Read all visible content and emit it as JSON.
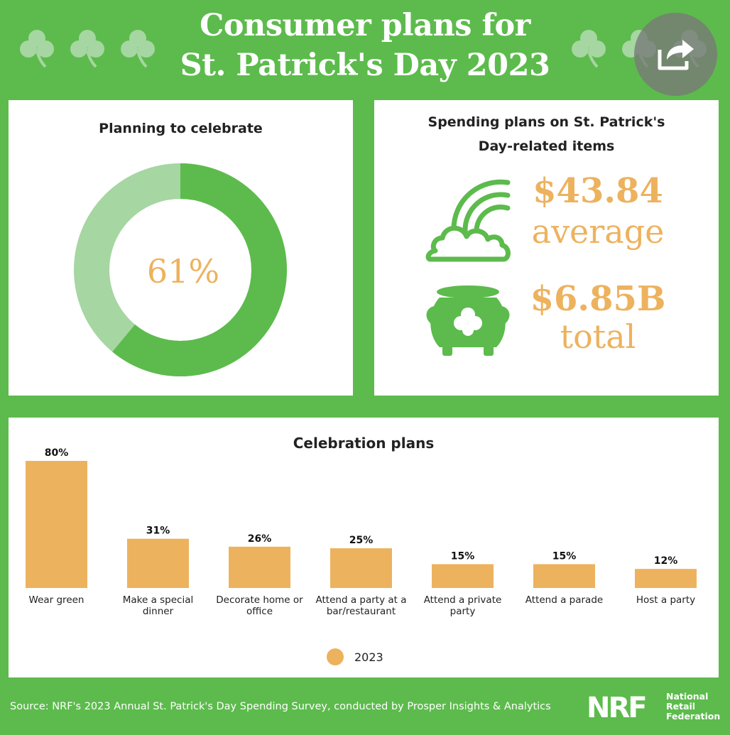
{
  "header": {
    "title_line1": "Consumer plans for",
    "title_line2": "St. Patrick's Day 2023"
  },
  "celebrate": {
    "title": "Planning to celebrate",
    "label": "61%",
    "value": 61,
    "colors": {
      "fill": "#5cbb4c",
      "rest": "#a6d6a2"
    }
  },
  "spending": {
    "title_line1": "Spending plans on St. Patrick's",
    "title_line2": "Day-related items",
    "average_value": "$43.84",
    "average_word": "average",
    "total_value": "$6.85B",
    "total_word": "total",
    "icons": [
      "rainbow-cloud-icon",
      "pot-of-gold-clover-icon"
    ]
  },
  "chart_data": {
    "type": "bar",
    "title": "Celebration plans",
    "categories": [
      "Wear green",
      "Make a special dinner",
      "Decorate home or office",
      "Attend a party at a bar/restaurant",
      "Attend a private party",
      "Attend a parade",
      "Host a party"
    ],
    "category_lines": [
      [
        "Wear green"
      ],
      [
        "Make a special",
        "dinner"
      ],
      [
        "Decorate home or",
        "office"
      ],
      [
        "Attend a party at a",
        "bar/restaurant"
      ],
      [
        "Attend a private",
        "party"
      ],
      [
        "Attend a parade"
      ],
      [
        "Host a party"
      ]
    ],
    "series": [
      {
        "name": "2023",
        "values": [
          80,
          31,
          26,
          25,
          15,
          15,
          12
        ],
        "color": "#edb25e"
      }
    ],
    "value_labels": [
      "80%",
      "31%",
      "26%",
      "25%",
      "15%",
      "15%",
      "12%"
    ],
    "ylim": [
      0,
      80
    ],
    "grid": false,
    "legend": "bottom-center"
  },
  "legend": {
    "label": "2023"
  },
  "footer": {
    "source": "Source: NRF's 2023 Annual St. Patrick's Day Spending Survey, conducted by Prosper Insights & Analytics",
    "logo_mark": "NRF",
    "logo_line1": "National",
    "logo_line2": "Retail",
    "logo_line3": "Federation"
  },
  "colors": {
    "background": "#5cbb4c",
    "accent": "#edb25e",
    "clover": "#a6d6a2",
    "share_button": "#787878"
  },
  "decor": {
    "clover_icon": "shamrock-icon",
    "share_icon": "share-icon"
  }
}
